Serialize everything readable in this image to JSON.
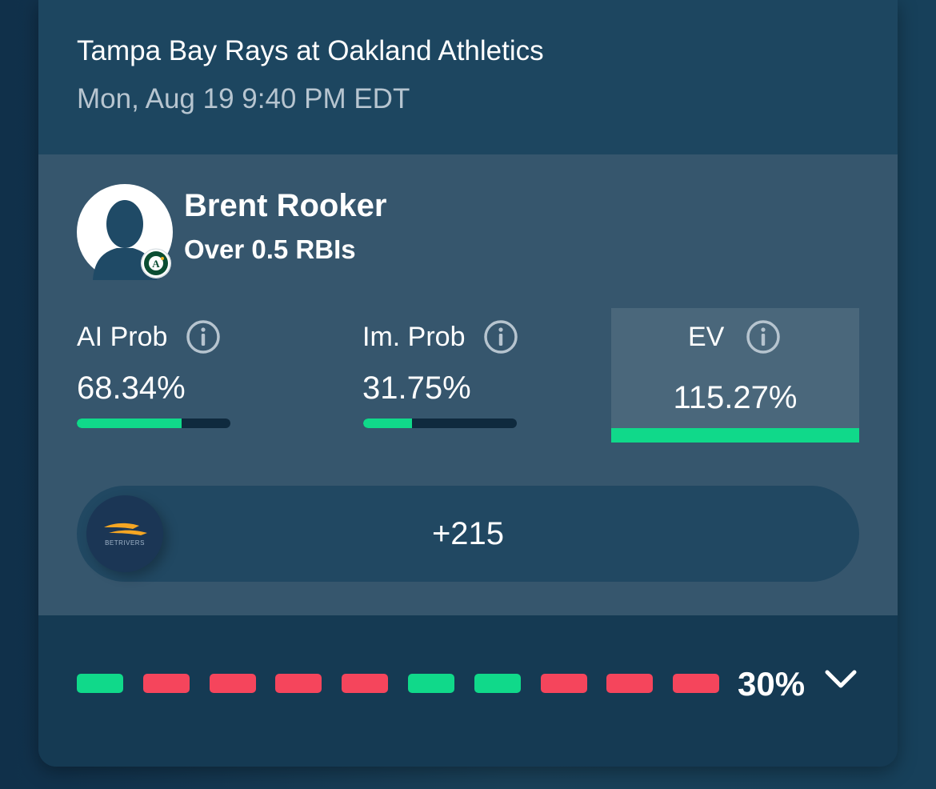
{
  "game": {
    "title": "Tampa Bay Rays at Oakland Athletics",
    "time": "Mon, Aug 19 9:40 PM EDT"
  },
  "player": {
    "name": "Brent Rooker",
    "prop": "Over 0.5 RBIs",
    "avatar_icon": "person-silhouette-icon",
    "team_logo_icon": "oakland-athletics-logo",
    "team_logo_text": "OAKLAND ATHLETICS"
  },
  "stats": {
    "ai_prob": {
      "label": "AI Prob",
      "value": "68.34%",
      "bar_fraction": 0.68
    },
    "im_prob": {
      "label": "Im. Prob",
      "value": "31.75%",
      "bar_fraction": 0.32
    },
    "ev": {
      "label": "EV",
      "value": "115.27%"
    }
  },
  "odds": {
    "book_name": "BETRIVERS",
    "book_logo_icon": "betrivers-logo",
    "value": "+215"
  },
  "history": {
    "results": [
      "hit",
      "miss",
      "miss",
      "miss",
      "miss",
      "hit",
      "hit",
      "miss",
      "miss",
      "miss"
    ],
    "hit_rate": "30%",
    "expand_icon": "chevron-down-icon"
  },
  "colors": {
    "hit": "#10d98a",
    "miss": "#f5455c",
    "accent_gold": "#f5a623",
    "background": "#173d57"
  }
}
